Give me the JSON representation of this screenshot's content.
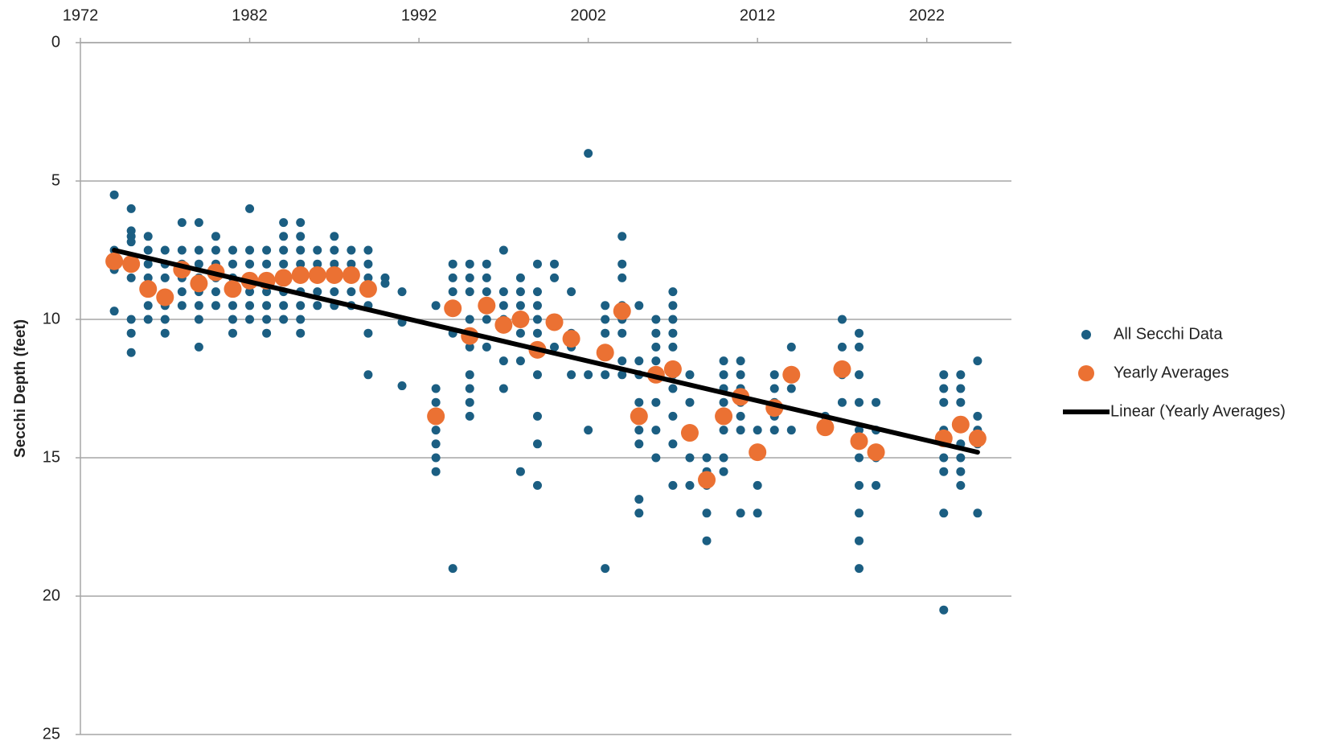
{
  "chart_data": {
    "type": "scatter",
    "y_label": "Secchi Depth (feet)",
    "xlim": [
      1972,
      2027
    ],
    "xticks": [
      1972,
      1982,
      1992,
      2002,
      2012,
      2022
    ],
    "ylim": [
      0,
      25
    ],
    "yticks": [
      0,
      5,
      10,
      15,
      20,
      25
    ],
    "y_inverted": true,
    "grid": true,
    "legend": "right",
    "series": [
      {
        "name": "All Secchi Data",
        "type": "scatter",
        "color": "#1b5e82",
        "x": [
          1974,
          1974,
          1974,
          1974,
          1974,
          1975,
          1975,
          1975,
          1975,
          1975,
          1975,
          1975,
          1975,
          1975,
          1976,
          1976,
          1976,
          1976,
          1976,
          1976,
          1977,
          1977,
          1977,
          1977,
          1977,
          1977,
          1978,
          1978,
          1978,
          1978,
          1978,
          1978,
          1979,
          1979,
          1979,
          1979,
          1979,
          1979,
          1979,
          1979,
          1980,
          1980,
          1980,
          1980,
          1980,
          1980,
          1981,
          1981,
          1981,
          1981,
          1981,
          1981,
          1981,
          1982,
          1982,
          1982,
          1982,
          1982,
          1982,
          1982,
          1983,
          1983,
          1983,
          1983,
          1983,
          1983,
          1983,
          1984,
          1984,
          1984,
          1984,
          1984,
          1984,
          1984,
          1984,
          1985,
          1985,
          1985,
          1985,
          1985,
          1985,
          1985,
          1985,
          1985,
          1986,
          1986,
          1986,
          1986,
          1986,
          1987,
          1987,
          1987,
          1987,
          1987,
          1987,
          1988,
          1988,
          1988,
          1988,
          1988,
          1989,
          1989,
          1989,
          1989,
          1989,
          1989,
          1990,
          1990,
          1991,
          1991,
          1991,
          1993,
          1993,
          1993,
          1993,
          1993,
          1993,
          1993,
          1993,
          1994,
          1994,
          1994,
          1994,
          1994,
          1994,
          1995,
          1995,
          1995,
          1995,
          1995,
          1995,
          1995,
          1995,
          1995,
          1996,
          1996,
          1996,
          1996,
          1996,
          1996,
          1997,
          1997,
          1997,
          1997,
          1997,
          1997,
          1998,
          1998,
          1998,
          1998,
          1998,
          1998,
          1999,
          1999,
          1999,
          1999,
          1999,
          1999,
          1999,
          1999,
          1999,
          2000,
          2000,
          2000,
          2000,
          2001,
          2001,
          2001,
          2001,
          2002,
          2002,
          2002,
          2003,
          2003,
          2003,
          2003,
          2003,
          2004,
          2004,
          2004,
          2004,
          2004,
          2004,
          2004,
          2004,
          2005,
          2005,
          2005,
          2005,
          2005,
          2005,
          2005,
          2005,
          2006,
          2006,
          2006,
          2006,
          2006,
          2006,
          2006,
          2006,
          2007,
          2007,
          2007,
          2007,
          2007,
          2007,
          2007,
          2007,
          2007,
          2007,
          2008,
          2008,
          2008,
          2008,
          2009,
          2009,
          2009,
          2009,
          2009,
          2010,
          2010,
          2010,
          2010,
          2010,
          2010,
          2010,
          2011,
          2011,
          2011,
          2011,
          2011,
          2011,
          2011,
          2012,
          2012,
          2012,
          2013,
          2013,
          2013,
          2013,
          2013,
          2014,
          2014,
          2014,
          2016,
          2016,
          2017,
          2017,
          2017,
          2017,
          2018,
          2018,
          2018,
          2018,
          2018,
          2018,
          2018,
          2018,
          2018,
          2018,
          2019,
          2019,
          2019,
          2019,
          2023,
          2023,
          2023,
          2023,
          2023,
          2023,
          2023,
          2023,
          2024,
          2024,
          2024,
          2024,
          2024,
          2024,
          2024,
          2025,
          2025,
          2025,
          2025,
          2025
        ],
        "values": [
          5.5,
          7.5,
          8,
          8.2,
          9.7,
          6,
          6.8,
          7,
          7.2,
          8,
          8.5,
          10,
          10.5,
          11.2,
          7,
          7.5,
          8,
          8.5,
          9.5,
          10,
          7.5,
          8,
          8.5,
          9.5,
          10,
          10.5,
          6.5,
          7.5,
          8,
          8.5,
          9,
          9.5,
          6.5,
          7.5,
          8,
          8.5,
          9,
          9.5,
          10,
          11,
          7,
          7.5,
          8,
          8.5,
          9,
          9.5,
          7.5,
          8,
          8.5,
          9,
          9.5,
          10,
          10.5,
          6,
          7.5,
          8,
          8.5,
          9,
          9.5,
          10,
          7.5,
          8,
          8.5,
          9,
          9.5,
          10,
          10.5,
          6.5,
          7,
          7.5,
          8,
          8.5,
          9,
          9.5,
          10,
          6.5,
          7,
          7.5,
          8,
          8.5,
          9,
          9.5,
          10,
          10.5,
          7.5,
          8,
          8.5,
          9,
          9.5,
          7,
          7.5,
          8,
          8.5,
          9,
          9.5,
          7.5,
          8,
          8.5,
          9,
          9.5,
          7.5,
          8,
          8.5,
          9.5,
          10.5,
          12,
          8.5,
          8.7,
          9,
          10.1,
          12.4,
          9.5,
          12.5,
          13,
          13.5,
          14,
          14.5,
          15,
          15.5,
          8,
          8.5,
          9,
          9.5,
          10.5,
          19,
          8,
          8.5,
          9,
          10,
          11,
          12,
          12.5,
          13,
          13.5,
          8,
          8.5,
          9,
          9.5,
          10,
          11,
          7.5,
          9,
          9.5,
          10,
          11.5,
          12.5,
          8.5,
          9,
          9.5,
          10.5,
          11.5,
          15.5,
          8,
          9,
          9.5,
          10,
          10.5,
          12,
          13.5,
          14.5,
          16,
          8,
          8.5,
          10,
          11,
          9,
          10.5,
          11,
          12,
          4,
          12,
          14,
          9.5,
          10,
          10.5,
          12,
          19,
          7,
          8,
          8.5,
          9.5,
          10,
          10.5,
          11.5,
          12,
          9.5,
          11.5,
          12,
          13,
          14,
          14.5,
          16.5,
          17,
          10,
          10.5,
          11,
          11.5,
          12,
          13,
          14,
          15,
          9,
          9.5,
          10,
          10.5,
          11,
          12,
          12.5,
          13.5,
          14.5,
          16,
          12,
          13,
          15,
          16,
          15,
          15.5,
          16,
          17,
          18,
          11.5,
          12,
          12.5,
          13,
          14,
          15,
          15.5,
          11.5,
          12,
          12.5,
          13,
          13.5,
          14,
          17,
          14,
          16,
          17,
          12,
          12.5,
          13,
          13.5,
          14,
          11,
          12.5,
          14,
          13.5,
          14,
          10,
          11,
          12,
          13,
          10.5,
          11,
          12,
          13,
          14,
          15,
          16,
          17,
          18,
          19,
          13,
          14,
          15,
          16,
          12,
          12.5,
          13,
          14,
          15,
          15.5,
          17,
          20.5,
          12,
          12.5,
          13,
          14.5,
          15,
          15.5,
          16,
          11.5,
          13.5,
          14,
          14.5,
          17
        ]
      },
      {
        "name": "Yearly Averages",
        "type": "scatter",
        "color": "#eb7133",
        "x": [
          1974,
          1975,
          1976,
          1977,
          1978,
          1979,
          1980,
          1981,
          1982,
          1983,
          1984,
          1985,
          1986,
          1987,
          1988,
          1989,
          1993,
          1994,
          1995,
          1996,
          1997,
          1998,
          1999,
          2000,
          2001,
          2003,
          2004,
          2005,
          2006,
          2007,
          2008,
          2009,
          2010,
          2011,
          2012,
          2013,
          2014,
          2016,
          2017,
          2018,
          2019,
          2023,
          2024,
          2025
        ],
        "values": [
          7.9,
          8.0,
          8.9,
          9.2,
          8.2,
          8.7,
          8.3,
          8.9,
          8.6,
          8.6,
          8.5,
          8.4,
          8.4,
          8.4,
          8.4,
          8.9,
          13.5,
          9.6,
          10.6,
          9.5,
          10.2,
          10.0,
          11.1,
          10.1,
          10.7,
          11.2,
          9.7,
          13.5,
          12.0,
          11.8,
          14.1,
          15.8,
          13.5,
          12.8,
          14.8,
          13.2,
          12.0,
          13.9,
          11.8,
          14.4,
          14.8,
          14.3,
          13.8,
          14.3
        ]
      },
      {
        "name": "Linear (Yearly Averages)",
        "type": "line",
        "color": "#000000",
        "x": [
          1974,
          2025
        ],
        "values": [
          7.5,
          14.8
        ]
      }
    ]
  }
}
